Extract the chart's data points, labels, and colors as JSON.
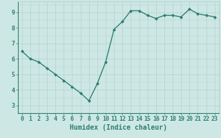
{
  "x": [
    0,
    1,
    2,
    3,
    4,
    5,
    6,
    7,
    8,
    9,
    10,
    11,
    12,
    13,
    14,
    15,
    16,
    17,
    18,
    19,
    20,
    21,
    22,
    23
  ],
  "y": [
    6.5,
    6.0,
    5.8,
    5.4,
    5.0,
    4.6,
    4.2,
    3.8,
    3.3,
    4.4,
    5.8,
    7.9,
    8.4,
    9.1,
    9.1,
    8.8,
    8.6,
    8.8,
    8.8,
    8.7,
    9.2,
    8.9,
    8.8,
    8.7
  ],
  "xlabel": "Humidex (Indice chaleur)",
  "xlim": [
    -0.5,
    23.5
  ],
  "ylim": [
    2.5,
    9.7
  ],
  "yticks": [
    3,
    4,
    5,
    6,
    7,
    8,
    9
  ],
  "xtick_labels": [
    "0",
    "1",
    "2",
    "3",
    "4",
    "5",
    "6",
    "7",
    "8",
    "9",
    "10",
    "11",
    "12",
    "13",
    "14",
    "15",
    "16",
    "17",
    "18",
    "19",
    "20",
    "21",
    "22",
    "23"
  ],
  "line_color": "#2e7d72",
  "marker": "D",
  "marker_size": 2.0,
  "bg_color": "#cde8e4",
  "grid_color": "#b8d4cf",
  "axis_bg": "#cde8e4",
  "tick_color": "#2e7d72",
  "label_color": "#2e7d72",
  "xlabel_fontsize": 7,
  "tick_fontsize": 6,
  "linewidth": 1.0
}
